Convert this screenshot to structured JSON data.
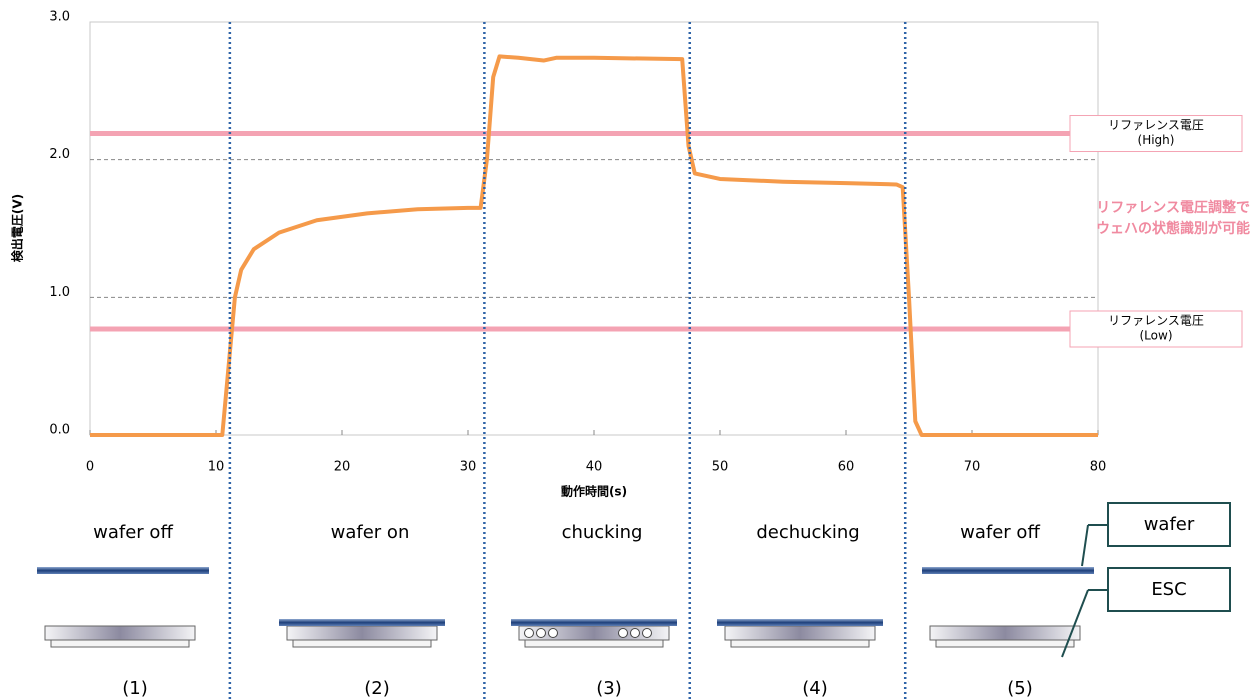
{
  "chart_data": {
    "type": "line",
    "y_axis_label": "検出電圧(V)",
    "x_axis_label": "動作時間(s)",
    "xlim": [
      0,
      80
    ],
    "ylim": [
      0,
      3
    ],
    "xticks": [
      0,
      10,
      20,
      30,
      40,
      50,
      60,
      70,
      80
    ],
    "yticks": [
      {
        "value": 0,
        "label": "0.0"
      },
      {
        "value": 1,
        "label": "1.0"
      },
      {
        "value": 2,
        "label": "2.0"
      },
      {
        "value": 3,
        "label": "3.0"
      }
    ],
    "grid": true,
    "x": [
      0,
      10.5,
      11,
      11.5,
      12,
      13,
      15,
      18,
      22,
      26,
      30,
      31,
      31.5,
      32,
      32.5,
      34,
      36,
      37,
      40,
      47,
      47.5,
      48,
      50,
      55,
      60,
      64,
      64.5,
      65,
      65.5,
      66,
      80
    ],
    "series": [
      {
        "color": "#f59a4a",
        "values": [
          0,
          0,
          0.5,
          1.0,
          1.2,
          1.35,
          1.47,
          1.56,
          1.61,
          1.64,
          1.65,
          1.65,
          2.0,
          2.6,
          2.75,
          2.74,
          2.72,
          2.74,
          2.74,
          2.73,
          2.1,
          1.9,
          1.86,
          1.84,
          1.83,
          1.82,
          1.8,
          1.0,
          0.1,
          0,
          0
        ]
      }
    ],
    "reference_lines": [
      {
        "value": 2.19,
        "color": "#f4a3b3",
        "label": [
          "リファレンス電圧",
          "(High)"
        ]
      },
      {
        "value": 0.77,
        "color": "#f4a3b3",
        "label": [
          "リファレンス電圧",
          "(Low)"
        ]
      }
    ],
    "annotation": [
      "リファレンス電圧調整で",
      "ウェハの状態識別が可能"
    ],
    "phase_boundaries": [
      11.1,
      31.3,
      47.6,
      64.7
    ],
    "phases": [
      {
        "label": "wafer off",
        "number": "(1)"
      },
      {
        "label": "wafer on",
        "number": "(2)"
      },
      {
        "label": "chucking",
        "number": "(3)"
      },
      {
        "label": "dechucking",
        "number": "(4)"
      },
      {
        "label": "wafer off",
        "number": "(5)"
      }
    ],
    "callouts": [
      "wafer",
      "ESC"
    ]
  }
}
